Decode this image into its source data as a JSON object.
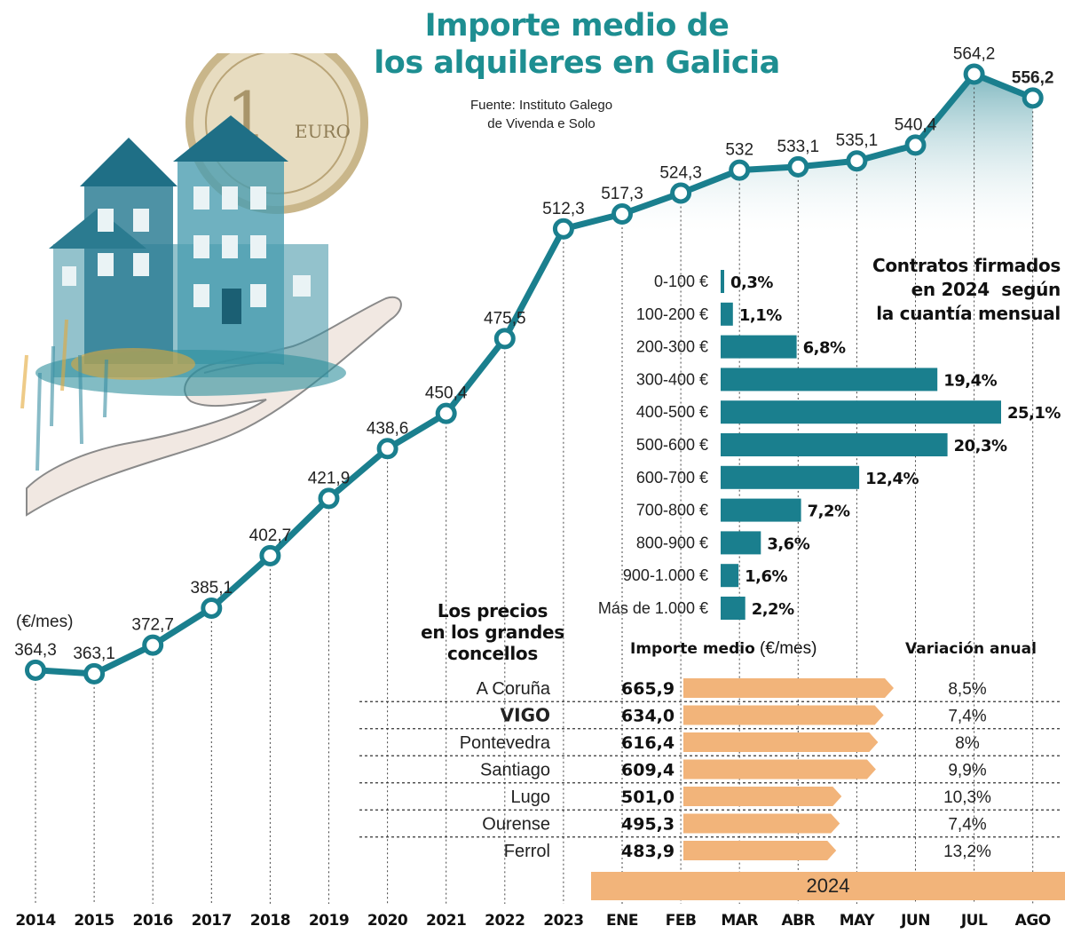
{
  "title": "Importe medio de los alquileres en Galicia",
  "title_lines": [
    "Importe medio de",
    "los alquileres en Galicia"
  ],
  "source": [
    "Fuente: Instituto Galego",
    "de Vivenda e Solo"
  ],
  "colors": {
    "teal": "#1a7f8e",
    "title_teal": "#1d8e91",
    "orange": "#f2b47a",
    "area": "#cfe3e8"
  },
  "chart_data": [
    {
      "type": "line",
      "title": "Importe medio de los alquileres en Galicia",
      "ylabel": "(€/mes)",
      "categories": [
        "2014",
        "2015",
        "2016",
        "2017",
        "2018",
        "2019",
        "2020",
        "2021",
        "2022",
        "2023",
        "ENE",
        "FEB",
        "MAR",
        "ABR",
        "MAY",
        "JUN",
        "JUL",
        "AGO"
      ],
      "values": [
        364.3,
        363.1,
        372.7,
        385.1,
        402.7,
        421.9,
        438.6,
        450.4,
        475.5,
        512.3,
        517.3,
        524.3,
        532,
        533.1,
        535.1,
        540.4,
        564.2,
        556.2
      ],
      "labels": [
        "364,3",
        "363,1",
        "372,7",
        "385,1",
        "402,7",
        "421,9",
        "438,6",
        "450,4",
        "475,5",
        "512,3",
        "517,3",
        "524,3",
        "532",
        "533,1",
        "535,1",
        "540,4",
        "564,2",
        "556,2"
      ],
      "ylim": [
        358,
        570
      ],
      "grid": false,
      "period_band": "2024"
    },
    {
      "type": "bar",
      "orientation": "horizontal",
      "title": "Contratos firmados en 2024 según la cuantía mensual",
      "title_lines": [
        "Contratos firmados",
        "en 2024  según",
        "la cuantía mensual"
      ],
      "categories": [
        "0-100 €",
        "100-200 €",
        "200-300 €",
        "300-400 €",
        "400-500 €",
        "500-600 €",
        "600-700 €",
        "700-800 €",
        "800-900 €",
        "900-1.000 €",
        "Más de 1.000 €"
      ],
      "values": [
        0.3,
        1.1,
        6.8,
        19.4,
        25.1,
        20.3,
        12.4,
        7.2,
        3.6,
        1.6,
        2.2
      ],
      "labels": [
        "0,3%",
        "1,1%",
        "6,8%",
        "19,4%",
        "25,1%",
        "20,3%",
        "12,4%",
        "7,2%",
        "3,6%",
        "1,6%",
        "2,2%"
      ],
      "xlim": [
        0,
        25.1
      ]
    },
    {
      "type": "table",
      "title": "Los precios en los grandes concellos",
      "title_lines": [
        "Los precios",
        "en los grandes",
        "concellos"
      ],
      "columns": [
        "Importe medio",
        "(€/mes)",
        "Variación anual"
      ],
      "rows": [
        {
          "city": "A Coruña",
          "value": 665.9,
          "value_label": "665,9",
          "variation": "8,5%",
          "bold": false
        },
        {
          "city": "VIGO",
          "value": 634.0,
          "value_label": "634,0",
          "variation": "7,4%",
          "bold": true
        },
        {
          "city": "Pontevedra",
          "value": 616.4,
          "value_label": "616,4",
          "variation": "8%",
          "bold": false
        },
        {
          "city": "Santiago",
          "value": 609.4,
          "value_label": "609,4",
          "variation": "9,9%",
          "bold": false
        },
        {
          "city": "Lugo",
          "value": 501.0,
          "value_label": "501,0",
          "variation": "10,3%",
          "bold": false
        },
        {
          "city": "Ourense",
          "value": 495.3,
          "value_label": "495,3",
          "variation": "7,4%",
          "bold": false
        },
        {
          "city": "Ferrol",
          "value": 483.9,
          "value_label": "483,9",
          "variation": "13,2%",
          "bold": false
        }
      ]
    }
  ],
  "illustration": {
    "icon": "house-in-hand-with-euro-coin-icon",
    "coin_text": "EURO"
  }
}
